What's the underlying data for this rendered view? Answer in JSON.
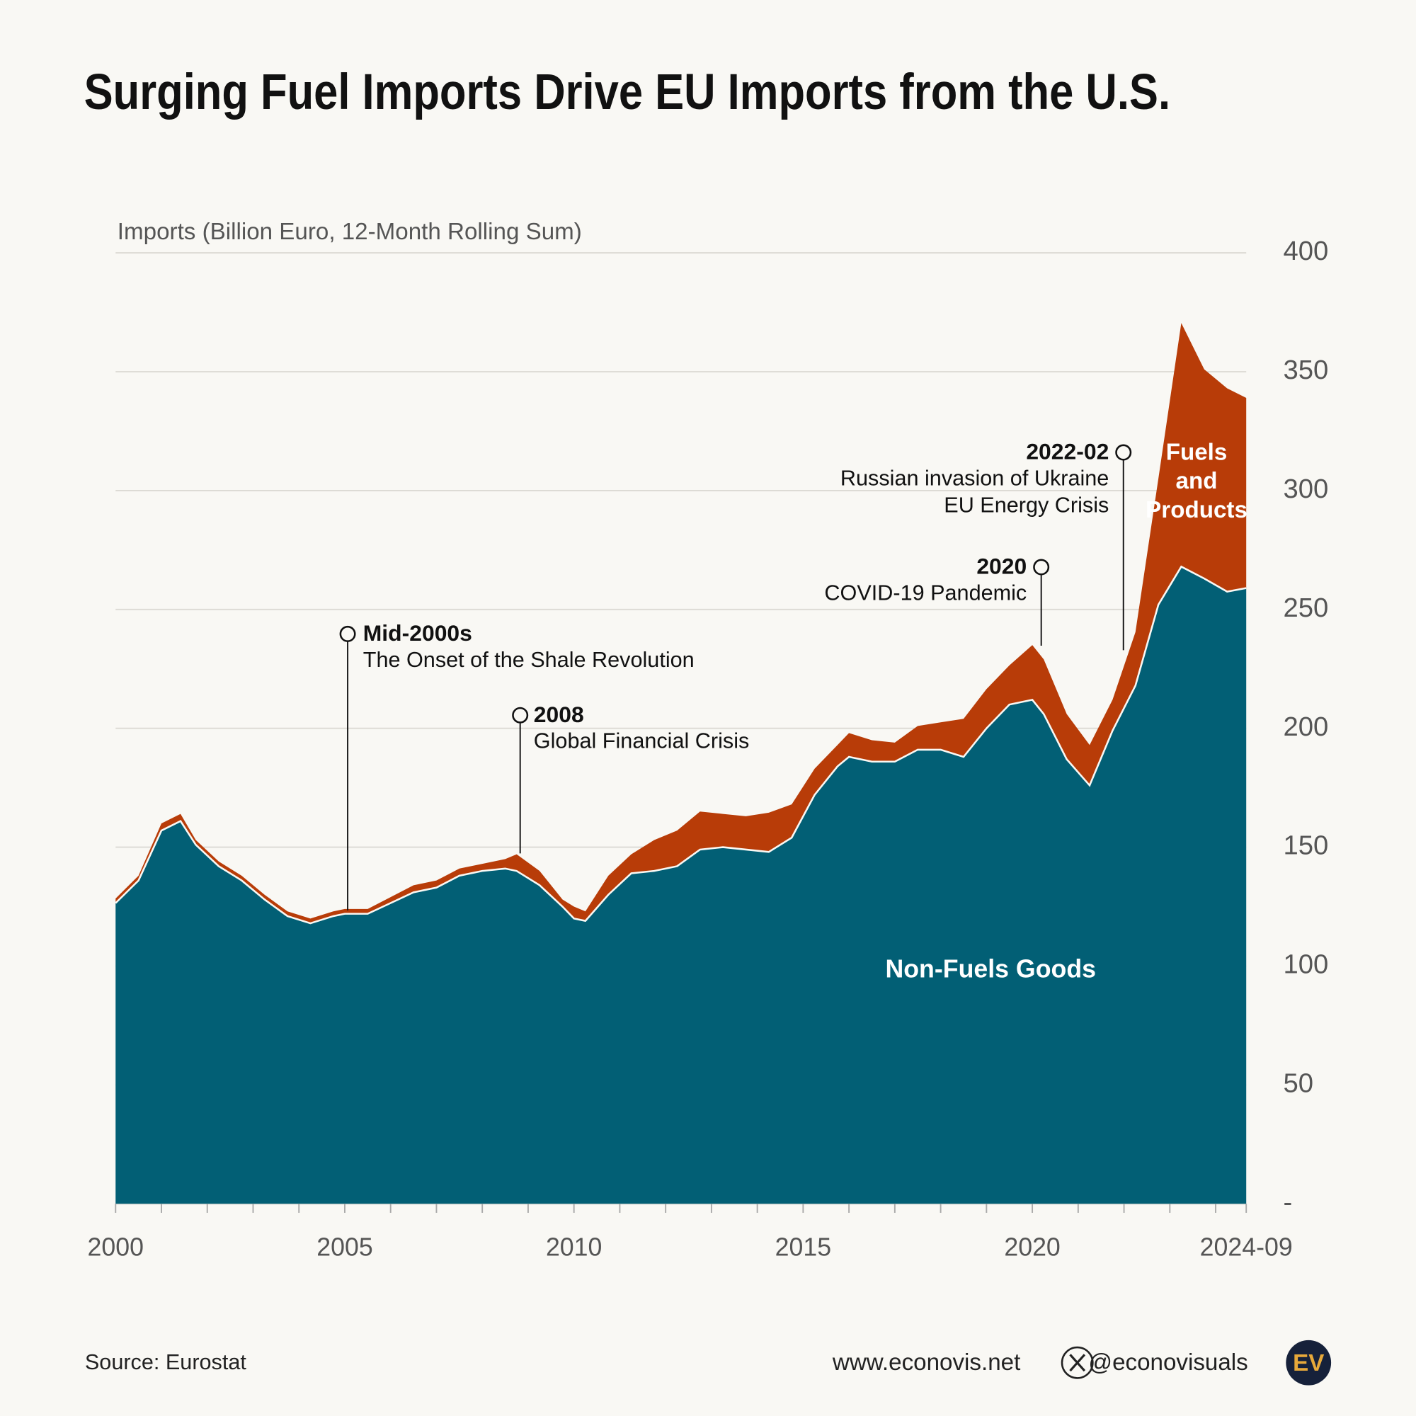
{
  "chart_data": {
    "type": "stacked_area",
    "title": "Surging Fuel Imports Drive EU Imports from the U.S.",
    "y_label": "Imports (Billion Euro, 12-Month Rolling Sum)",
    "x": [
      "2000-01",
      "2000-07",
      "2001-01",
      "2001-06",
      "2001-10",
      "2002-04",
      "2002-10",
      "2003-04",
      "2003-10",
      "2004-04",
      "2004-10",
      "2005-01",
      "2005-07",
      "2006-01",
      "2006-07",
      "2007-01",
      "2007-07",
      "2008-01",
      "2008-07",
      "2008-10",
      "2009-04",
      "2009-10",
      "2010-01",
      "2010-04",
      "2010-10",
      "2011-04",
      "2011-10",
      "2012-04",
      "2012-10",
      "2013-04",
      "2013-10",
      "2014-04",
      "2014-10",
      "2015-04",
      "2015-10",
      "2016-01",
      "2016-07",
      "2017-01",
      "2017-07",
      "2018-01",
      "2018-07",
      "2019-01",
      "2019-07",
      "2020-01",
      "2020-04",
      "2020-10",
      "2021-04",
      "2021-10",
      "2022-04",
      "2022-10",
      "2023-04",
      "2023-10",
      "2024-04",
      "2024-09"
    ],
    "series": [
      {
        "name": "Non-Fuels Goods",
        "color": "#025f75",
        "values": [
          126.5,
          136,
          157,
          161,
          151,
          142,
          136,
          128,
          121,
          118,
          121,
          122,
          122,
          126.5,
          131,
          133,
          138,
          140,
          141,
          140,
          134,
          125,
          120,
          119,
          130,
          139,
          140,
          142,
          149,
          150,
          149,
          148,
          154,
          172,
          184,
          188,
          186,
          186,
          191,
          191,
          188,
          200,
          210,
          212,
          206,
          187,
          176,
          199,
          218,
          252,
          268,
          263,
          257.5,
          259
        ]
      },
      {
        "name": "Fuels and Products",
        "color": "#b83c08",
        "values": [
          1.9,
          2,
          3,
          3,
          2,
          2,
          2,
          2,
          2,
          2,
          2,
          2,
          2,
          2.5,
          3,
          3,
          3,
          3,
          4,
          7,
          6,
          3,
          5,
          4,
          8,
          8,
          13,
          15,
          16,
          14,
          14,
          16.5,
          14,
          11,
          9,
          10,
          9,
          8,
          10,
          11.5,
          16,
          16.5,
          16.5,
          23,
          23,
          19,
          17,
          13,
          22.5,
          53,
          102.5,
          88,
          85.5,
          80
        ]
      }
    ],
    "xlim": [
      "2000-01",
      "2024-09"
    ],
    "xticks": [
      "2000",
      "2005",
      "2010",
      "2015",
      "2020",
      "2024-09"
    ],
    "xminorticks": [
      "2001",
      "2002",
      "2003",
      "2004",
      "2006",
      "2007",
      "2008",
      "2009",
      "2011",
      "2012",
      "2013",
      "2014",
      "2016",
      "2017",
      "2018",
      "2019",
      "2021",
      "2022",
      "2023",
      "2024"
    ],
    "ylim": [
      0,
      400
    ],
    "yticks": [
      {
        "value": 0,
        "label": "-"
      },
      50,
      100,
      150,
      200,
      250,
      300,
      350,
      400
    ],
    "grid": true,
    "annotations": [
      {
        "title": "Mid-2000s",
        "lines": [
          "The Onset of the Shale Revolution"
        ]
      },
      {
        "title": "2008",
        "lines": [
          "Global Financial Crisis"
        ]
      },
      {
        "title": "2020",
        "lines": [
          "COVID-19 Pandemic"
        ]
      },
      {
        "title": "2022-02",
        "lines": [
          "Russian invasion of Ukraine",
          "EU Energy Crisis"
        ]
      }
    ]
  },
  "footer": {
    "source": "Source: Eurostat",
    "website": "www.econovis.net",
    "handle": "@econovisuals",
    "logo": "EV"
  }
}
